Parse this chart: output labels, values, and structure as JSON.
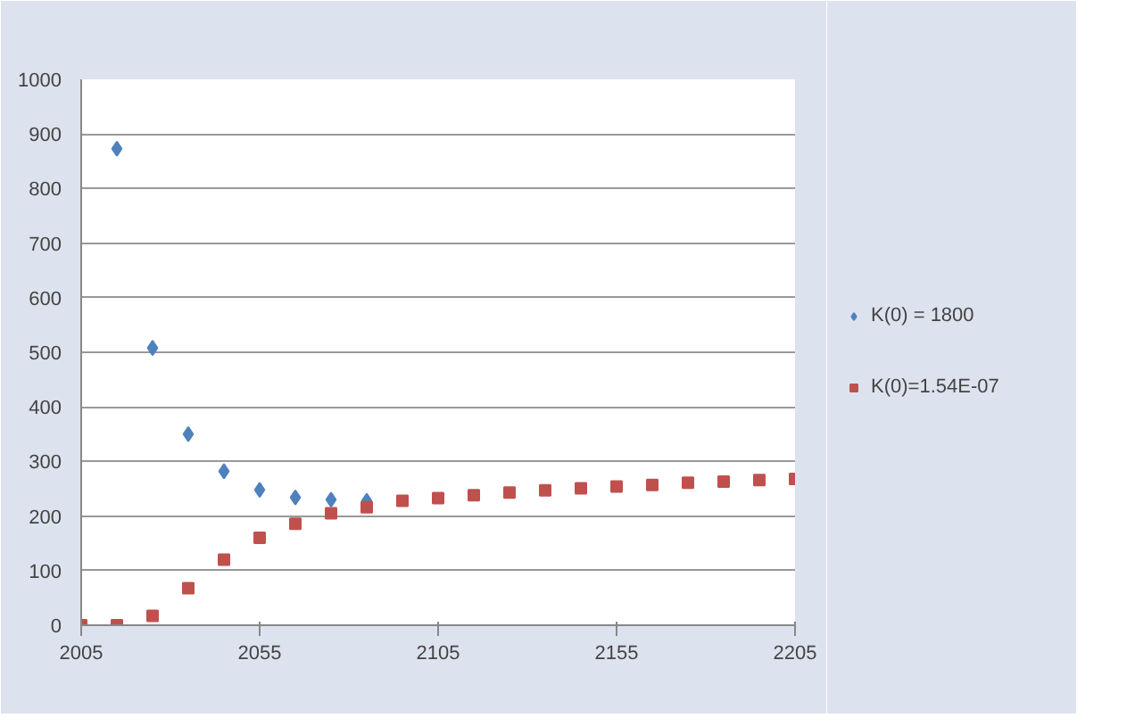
{
  "chart_data": {
    "type": "scatter",
    "xlim": [
      2005,
      2205
    ],
    "xticks": [
      2005,
      2055,
      2105,
      2155,
      2205
    ],
    "ylim": [
      0,
      1000
    ],
    "yticks": [
      0,
      100,
      200,
      300,
      400,
      500,
      600,
      700,
      800,
      900,
      1000
    ],
    "grid": "y",
    "legend": "right",
    "series": [
      {
        "name": "K(0) = 1800",
        "color": "#4f81bd",
        "marker": "diamond",
        "x": [
          2015,
          2025,
          2035,
          2045,
          2055,
          2065,
          2075,
          2085
        ],
        "values": [
          873,
          508,
          350,
          282,
          248,
          234,
          230,
          228
        ]
      },
      {
        "name": "K(0)=1.54E-07",
        "color": "#c0504d",
        "marker": "square",
        "x": [
          2005,
          2015,
          2025,
          2035,
          2045,
          2055,
          2065,
          2075,
          2085,
          2095,
          2105,
          2115,
          2125,
          2135,
          2145,
          2155,
          2165,
          2175,
          2185,
          2195,
          2205
        ],
        "values": [
          0,
          0,
          17,
          68,
          120,
          160,
          186,
          205,
          216,
          228,
          233,
          238,
          243,
          247,
          251,
          254,
          257,
          261,
          263,
          266,
          268
        ]
      }
    ]
  }
}
